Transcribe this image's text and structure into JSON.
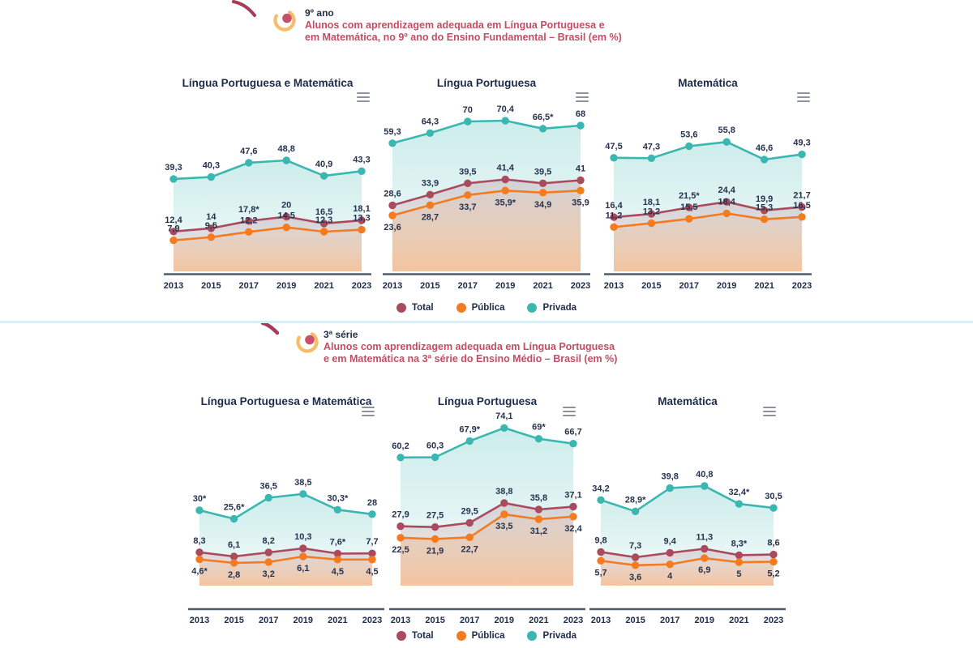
{
  "colors": {
    "total": "#aa4a5e",
    "publica": "#f47b20",
    "privada": "#3bb7b1",
    "title_text": "#1d2b4a",
    "value_label": "#26324e",
    "subtitle_text": "#c44d63",
    "axis_line": "#4d5d6e",
    "divider": "#d9edf5",
    "menu_icon": "#8b949c",
    "icon_arc": "#f8bb66",
    "icon_dot": "#c9506b",
    "decor_swirl": "#a63d56"
  },
  "legend": {
    "position": "bottom",
    "items": [
      {
        "label": "Total",
        "color": "#aa4a5e"
      },
      {
        "label": "Pública",
        "color": "#f47b20"
      },
      {
        "label": "Privada",
        "color": "#3bb7b1"
      }
    ]
  },
  "sections": [
    {
      "kicker": "9º ano",
      "subtitle_line1": "Alunos com aprendizagem adequada em Língua Portuguesa e",
      "subtitle_line2": "em Matemática, no 9º ano do Ensino Fundamental – Brasil (em %)",
      "chart_refs": [
        0,
        1,
        2
      ]
    },
    {
      "kicker": "3ª série",
      "subtitle_line1": "Alunos com aprendizagem adequada em Língua Portuguesa",
      "subtitle_line2": "e em Matemática na 3ª série do Ensino Médio – Brasil (em %)",
      "chart_refs": [
        3,
        4,
        5
      ]
    }
  ],
  "chart_data": [
    {
      "type": "line",
      "group": "9º ano do Ensino Fundamental",
      "title": "Língua Portuguesa e Matemática",
      "categories": [
        "2013",
        "2015",
        "2017",
        "2019",
        "2021",
        "2023"
      ],
      "ylim": [
        -8,
        77
      ],
      "grid": false,
      "legend_position": "bottom",
      "series": [
        {
          "name": "Total",
          "color": "#aa4a5e",
          "label_side": "above",
          "values": [
            12.4,
            14,
            17.8,
            20,
            16.5,
            18.1
          ],
          "labels": [
            "12,4",
            "14",
            "17,8*",
            "20",
            "16,5",
            "18,1"
          ]
        },
        {
          "name": "Pública",
          "color": "#f47b20",
          "label_side": "above",
          "values": [
            7.9,
            9.5,
            12.2,
            14.5,
            12.3,
            13.3
          ],
          "labels": [
            "7,9",
            "9,5",
            "12,2",
            "14,5",
            "12,3",
            "13,3"
          ]
        },
        {
          "name": "Privada",
          "color": "#3bb7b1",
          "label_side": "above",
          "values": [
            39.3,
            40.3,
            47.6,
            48.8,
            40.9,
            43.3
          ],
          "labels": [
            "39,3",
            "40,3",
            "47,6",
            "48,8",
            "40,9",
            "43,3"
          ]
        }
      ]
    },
    {
      "type": "line",
      "group": "9º ano do Ensino Fundamental",
      "title": "Língua Portuguesa",
      "categories": [
        "2013",
        "2015",
        "2017",
        "2019",
        "2021",
        "2023"
      ],
      "ylim": [
        -4,
        78
      ],
      "grid": false,
      "legend_position": "bottom",
      "series": [
        {
          "name": "Total",
          "color": "#aa4a5e",
          "label_side": "above",
          "values": [
            28.6,
            33.9,
            39.5,
            41.4,
            39.5,
            41
          ],
          "labels": [
            "28,6",
            "33,9",
            "39,5",
            "41,4",
            "39,5",
            "41"
          ]
        },
        {
          "name": "Pública",
          "color": "#f47b20",
          "label_side": "below",
          "values": [
            23.6,
            28.7,
            33.7,
            35.9,
            34.9,
            35.9
          ],
          "labels": [
            "23,6",
            "28,7",
            "33,7",
            "35,9*",
            "34,9",
            "35,9"
          ]
        },
        {
          "name": "Privada",
          "color": "#3bb7b1",
          "label_side": "above",
          "values": [
            59.3,
            64.3,
            70,
            70.4,
            66.5,
            68
          ],
          "labels": [
            "59,3",
            "64,3",
            "70",
            "70,4",
            "66,5*",
            "68"
          ]
        }
      ]
    },
    {
      "type": "line",
      "group": "9º ano do Ensino Fundamental",
      "title": "Matemática",
      "categories": [
        "2013",
        "2015",
        "2017",
        "2019",
        "2021",
        "2023"
      ],
      "ylim": [
        -12,
        75
      ],
      "grid": false,
      "legend_position": "bottom",
      "series": [
        {
          "name": "Total",
          "color": "#aa4a5e",
          "label_side": "above",
          "values": [
            16.4,
            18.1,
            21.5,
            24.4,
            19.9,
            21.7
          ],
          "labels": [
            "16,4",
            "18,1",
            "21,5*",
            "24,4",
            "19,9",
            "21,7"
          ]
        },
        {
          "name": "Pública",
          "color": "#f47b20",
          "label_side": "above",
          "values": [
            11.2,
            13.2,
            15.5,
            18.4,
            15.3,
            16.5
          ],
          "labels": [
            "11,2",
            "13,2",
            "15,5",
            "18,4",
            "15,3",
            "16,5"
          ]
        },
        {
          "name": "Privada",
          "color": "#3bb7b1",
          "label_side": "above",
          "values": [
            47.5,
            47.3,
            53.6,
            55.8,
            46.6,
            49.3
          ],
          "labels": [
            "47,5",
            "47,3",
            "53,6",
            "55,8",
            "46,6",
            "49,3"
          ]
        }
      ]
    },
    {
      "type": "line",
      "group": "3ª série do Ensino Médio",
      "title": "Língua Portuguesa e Matemática",
      "categories": [
        "2013",
        "2015",
        "2017",
        "2019",
        "2021",
        "2023"
      ],
      "ylim": [
        -9,
        77
      ],
      "grid": false,
      "legend_position": "bottom",
      "series": [
        {
          "name": "Total",
          "color": "#aa4a5e",
          "label_side": "above",
          "values": [
            8.3,
            6.1,
            8.2,
            10.3,
            7.6,
            7.7
          ],
          "labels": [
            "8,3",
            "6,1",
            "8,2",
            "10,3",
            "7,6*",
            "7,7"
          ]
        },
        {
          "name": "Pública",
          "color": "#f47b20",
          "label_side": "below",
          "values": [
            4.6,
            2.8,
            3.2,
            6.1,
            4.5,
            4.5
          ],
          "labels": [
            "4,6*",
            "2,8",
            "3,2",
            "6,1",
            "4,5",
            "4,5"
          ]
        },
        {
          "name": "Privada",
          "color": "#3bb7b1",
          "label_side": "above",
          "values": [
            30,
            25.6,
            36.5,
            38.5,
            30.3,
            28
          ],
          "labels": [
            "30*",
            "25,6*",
            "36,5",
            "38,5",
            "30,3*",
            "28"
          ]
        }
      ]
    },
    {
      "type": "line",
      "group": "3ª série do Ensino Médio",
      "title": "Língua Portuguesa",
      "categories": [
        "2013",
        "2015",
        "2017",
        "2019",
        "2021",
        "2023"
      ],
      "ylim": [
        0,
        78
      ],
      "grid": false,
      "legend_position": "bottom",
      "series": [
        {
          "name": "Total",
          "color": "#aa4a5e",
          "label_side": "above",
          "values": [
            27.9,
            27.5,
            29.5,
            38.8,
            35.8,
            37.1
          ],
          "labels": [
            "27,9",
            "27,5",
            "29,5",
            "38,8",
            "35,8",
            "37,1"
          ]
        },
        {
          "name": "Pública",
          "color": "#f47b20",
          "label_side": "below",
          "values": [
            22.5,
            21.9,
            22.7,
            33.5,
            31.2,
            32.4
          ],
          "labels": [
            "22,5",
            "21,9",
            "22,7",
            "33,5",
            "31,2",
            "32,4"
          ]
        },
        {
          "name": "Privada",
          "color": "#3bb7b1",
          "label_side": "above",
          "values": [
            60.2,
            60.3,
            67.9,
            74.1,
            69,
            66.7
          ],
          "labels": [
            "60,2",
            "60,3",
            "67,9*",
            "74,1",
            "69*",
            "66,7"
          ]
        }
      ]
    },
    {
      "type": "line",
      "group": "3ª série do Ensino Médio",
      "title": "Matemática",
      "categories": [
        "2013",
        "2015",
        "2017",
        "2019",
        "2021",
        "2023"
      ],
      "ylim": [
        -6,
        72
      ],
      "grid": false,
      "legend_position": "bottom",
      "series": [
        {
          "name": "Total",
          "color": "#aa4a5e",
          "label_side": "above",
          "values": [
            9.8,
            7.3,
            9.4,
            11.3,
            8.3,
            8.6
          ],
          "labels": [
            "9,8",
            "7,3",
            "9,4",
            "11,3",
            "8,3*",
            "8,6"
          ]
        },
        {
          "name": "Pública",
          "color": "#f47b20",
          "label_side": "below",
          "values": [
            5.7,
            3.6,
            4,
            6.9,
            5,
            5.2
          ],
          "labels": [
            "5,7",
            "3,6",
            "4",
            "6,9",
            "5",
            "5,2"
          ]
        },
        {
          "name": "Privada",
          "color": "#3bb7b1",
          "label_side": "above",
          "values": [
            34.2,
            28.9,
            39.8,
            40.8,
            32.4,
            30.5
          ],
          "labels": [
            "34,2",
            "28,9*",
            "39,8",
            "40,8",
            "32,4*",
            "30,5"
          ]
        }
      ]
    }
  ]
}
